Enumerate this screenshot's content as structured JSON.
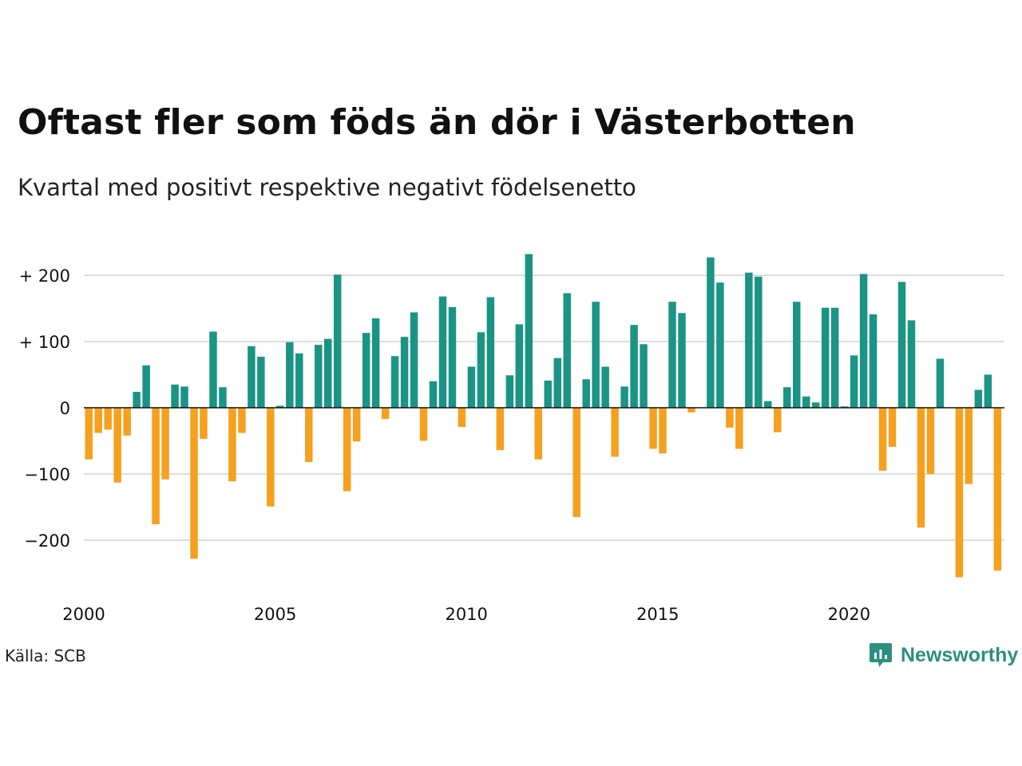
{
  "title": "Oftast fler som föds än dör i Västerbotten",
  "subtitle": "Kvartal med positivt respektive negativt födelsenetto",
  "source": "Källa: SCB",
  "brand": {
    "name": "Newsworthy",
    "icon": "newsworthy-chart-icon",
    "color": "#2d8f7f"
  },
  "colors": {
    "positive": "#1a9485",
    "negative": "#f5a01e",
    "grid": "#dddddd",
    "zero_line": "#111111"
  },
  "chart_data": {
    "type": "bar",
    "title": "Oftast fler som föds än dör i Västerbotten",
    "subtitle": "Kvartal med positivt respektive negativt födelsenetto",
    "xlabel": "",
    "ylabel": "",
    "ylim": [
      -270,
      240
    ],
    "y_ticks": [
      {
        "value": 200,
        "label": "+ 200"
      },
      {
        "value": 100,
        "label": "+ 100"
      },
      {
        "value": 0,
        "label": "0"
      },
      {
        "value": -100,
        "label": "−100"
      },
      {
        "value": -200,
        "label": "−200"
      }
    ],
    "x_ticks": [
      {
        "year": 2000,
        "label": "2000"
      },
      {
        "year": 2005,
        "label": "2005"
      },
      {
        "year": 2010,
        "label": "2010"
      },
      {
        "year": 2015,
        "label": "2015"
      },
      {
        "year": 2020,
        "label": "2020"
      }
    ],
    "grid": true,
    "legend": "none",
    "start": "2000 Q1",
    "frequency": "quarterly",
    "values": [
      -78,
      -38,
      -33,
      -113,
      -42,
      24,
      64,
      -176,
      -108,
      35,
      32,
      -228,
      -47,
      115,
      31,
      -111,
      -38,
      93,
      77,
      -149,
      3,
      99,
      82,
      -82,
      95,
      104,
      201,
      -126,
      -51,
      113,
      135,
      -17,
      78,
      107,
      144,
      -50,
      40,
      168,
      152,
      -29,
      62,
      114,
      167,
      -64,
      49,
      126,
      232,
      -78,
      41,
      75,
      173,
      -165,
      43,
      160,
      62,
      -74,
      32,
      125,
      96,
      -62,
      -69,
      160,
      143,
      -7,
      0,
      227,
      189,
      -30,
      -62,
      204,
      198,
      10,
      -37,
      31,
      160,
      17,
      8,
      151,
      151,
      2,
      79,
      202,
      141,
      -95,
      -59,
      190,
      132,
      -181,
      -100,
      74,
      0,
      -256,
      -115,
      27,
      50,
      -246
    ]
  }
}
